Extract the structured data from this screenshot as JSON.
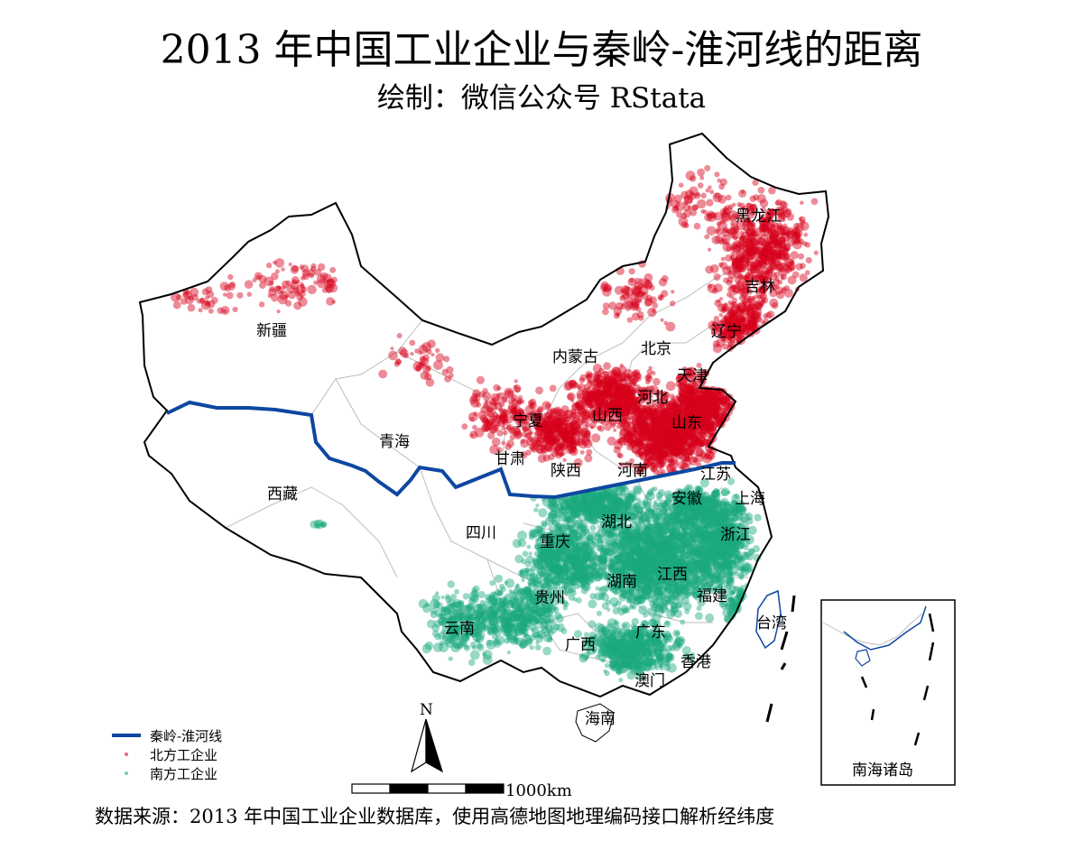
{
  "title": "2013 年中国工业企业与秦岭-淮河线的距离",
  "subtitle": "绘制：微信公众号 RStata",
  "caption": "数据来源：2013 年中国工业企业数据库，使用高德地图地理编码接口解析经纬度",
  "legend": {
    "line_label": "秦岭-淮河线",
    "north_label": "北方工企业",
    "south_label": "南方工企业"
  },
  "north_arrow": "N",
  "scale_bar_label": "1000km",
  "inset_label": "南海诸岛",
  "colors": {
    "north": "#d7001b",
    "south": "#1aa97f",
    "line": "#0d47a1",
    "border": "#000000",
    "province_border": "#bdbdbd"
  },
  "provinces": {
    "heilongjiang": "黑龙江",
    "jilin": "吉林",
    "liaoning": "辽宁",
    "neimenggu": "内蒙古",
    "beijing": "北京",
    "tianjin": "天津",
    "hebei": "河北",
    "shanxi": "山西",
    "shandong": "山东",
    "ningxia": "宁夏",
    "gansu": "甘肃",
    "shaanxi": "陕西",
    "henan": "河南",
    "jiangsu": "江苏",
    "anhui": "安徽",
    "shanghai": "上海",
    "xinjiang": "新疆",
    "qinghai": "青海",
    "xizang": "西藏",
    "sichuan": "四川",
    "chongqing": "重庆",
    "hubei": "湖北",
    "zhejiang": "浙江",
    "hunan": "湖南",
    "jiangxi": "江西",
    "guizhou": "贵州",
    "fujian": "福建",
    "yunnan": "云南",
    "guangxi": "广西",
    "guangdong": "广东",
    "taiwan": "台湾",
    "xianggang": "香港",
    "aomen": "澳门",
    "hainan": "海南"
  }
}
